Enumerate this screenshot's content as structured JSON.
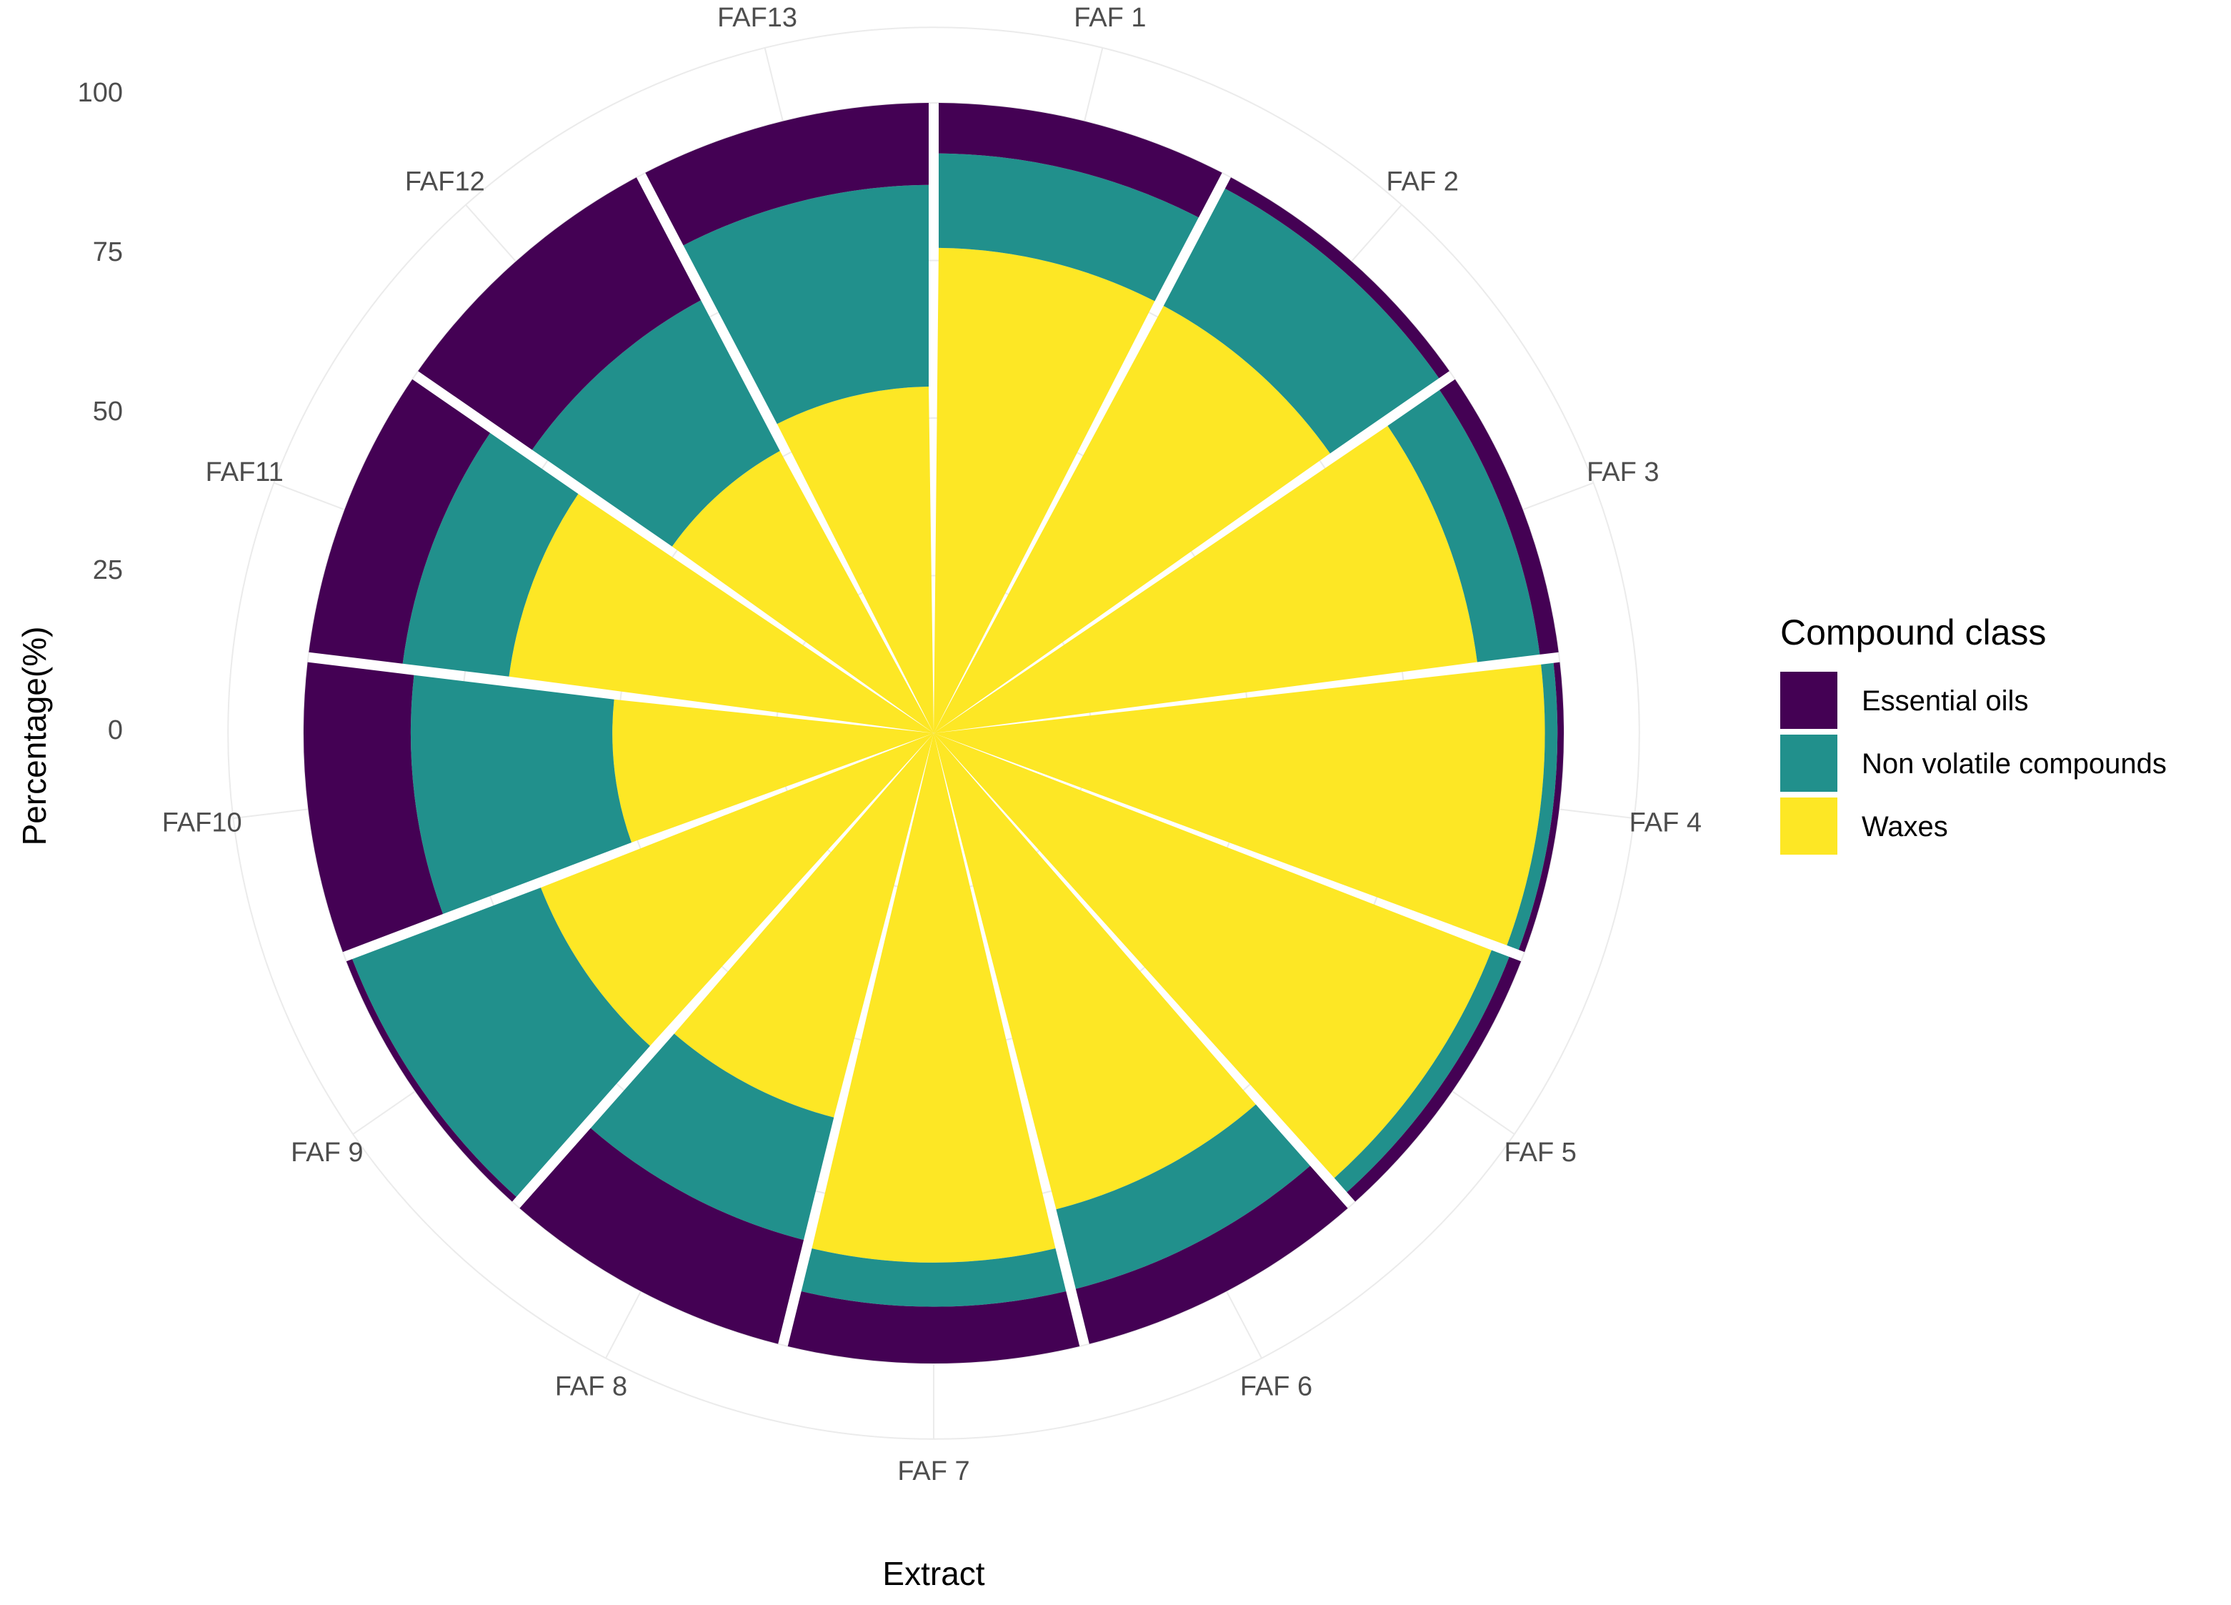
{
  "chart_data": {
    "type": "bar",
    "coord": "polar",
    "stacked": true,
    "xlabel": "Extract",
    "ylabel": "Percentage(%)",
    "ylim": [
      0,
      100
    ],
    "yticks": [
      "0",
      "25",
      "50",
      "75",
      "100"
    ],
    "grid": true,
    "legend_position": "right",
    "legend_title": "Compound class",
    "categories": [
      "FAF 1",
      "FAF 2",
      "FAF 3",
      "FAF 4",
      "FAF 5",
      "FAF 6",
      "FAF 7",
      "FAF 8",
      "FAF 9",
      "FAF10",
      "FAF11",
      "FAF12",
      "FAF13"
    ],
    "series": [
      {
        "name": "Essential oils",
        "color": "#440154",
        "values": [
          8,
          2,
          3,
          1,
          2,
          9,
          9,
          17,
          1,
          17,
          15,
          22,
          13
        ]
      },
      {
        "name": "Non volatile compounds",
        "color": "#21908C",
        "values": [
          15,
          21,
          10,
          2,
          3,
          13,
          7,
          20,
          32,
          32,
          17,
          27,
          32
        ]
      },
      {
        "name": "Waxes",
        "color": "#FDE725",
        "values": [
          77,
          77,
          87,
          97,
          95,
          78,
          84,
          63,
          67,
          51,
          68,
          51,
          55
        ]
      }
    ]
  }
}
